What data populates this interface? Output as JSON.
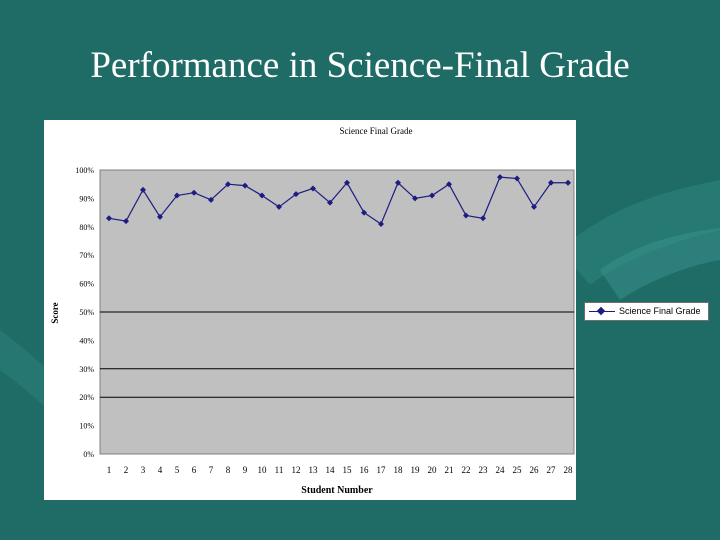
{
  "slide": {
    "title": "Performance in Science-Final Grade"
  },
  "colors": {
    "background": "#1f6b66",
    "plot_area": "#c0c0c0",
    "series": "#1c1c82"
  },
  "chart_data": {
    "type": "line",
    "title": "Science Final Grade",
    "xlabel": "Student Number",
    "ylabel": "Score",
    "x": [
      1,
      2,
      3,
      4,
      5,
      6,
      7,
      8,
      9,
      10,
      11,
      12,
      13,
      14,
      15,
      16,
      17,
      18,
      19,
      20,
      21,
      22,
      23,
      24,
      25,
      26,
      27,
      28
    ],
    "ylim": [
      0,
      100
    ],
    "yticks": [
      "0%",
      "10%",
      "20%",
      "30%",
      "40%",
      "50%",
      "60%",
      "70%",
      "80%",
      "90%",
      "100%"
    ],
    "gridlines_at": [
      30,
      20,
      50
    ],
    "legend_position": "right",
    "series": [
      {
        "name": "Science Final Grade",
        "values": [
          83,
          82,
          93,
          83.5,
          91,
          92,
          89.5,
          95,
          94.5,
          91,
          87,
          91.5,
          93.5,
          88.5,
          95.5,
          85,
          81,
          95.5,
          90,
          91,
          95,
          84,
          83,
          97.5,
          97,
          87,
          95.5,
          95.5
        ]
      }
    ]
  }
}
